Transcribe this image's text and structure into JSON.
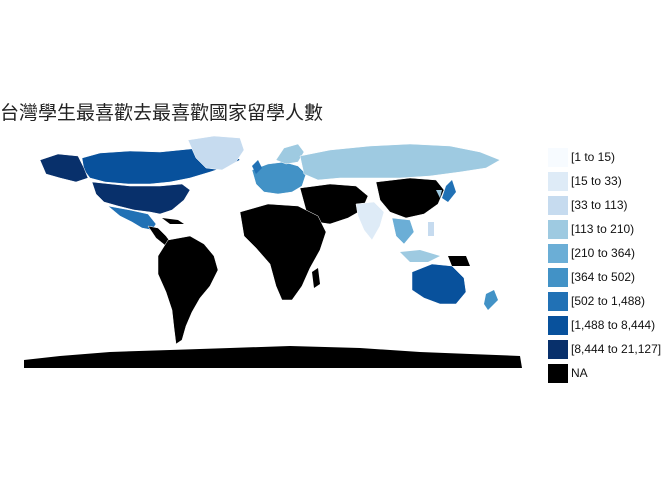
{
  "title": "台灣學生最喜歡去最喜歡國家留學人數",
  "legend": [
    {
      "label": "[1 to 15)",
      "color": "#f7fbff"
    },
    {
      "label": "[15 to 33)",
      "color": "#deebf7"
    },
    {
      "label": "[33 to 113)",
      "color": "#c6dbef"
    },
    {
      "label": "[113 to 210)",
      "color": "#9ecae1"
    },
    {
      "label": "[210 to 364)",
      "color": "#6baed6"
    },
    {
      "label": "[364 to 502)",
      "color": "#4292c6"
    },
    {
      "label": "[502 to 1,488)",
      "color": "#2171b5"
    },
    {
      "label": "[1,488 to 8,444)",
      "color": "#08519c"
    },
    {
      "label": "[8,444 to 21,127]",
      "color": "#08306b"
    },
    {
      "label": "NA",
      "color": "#000000"
    }
  ]
}
